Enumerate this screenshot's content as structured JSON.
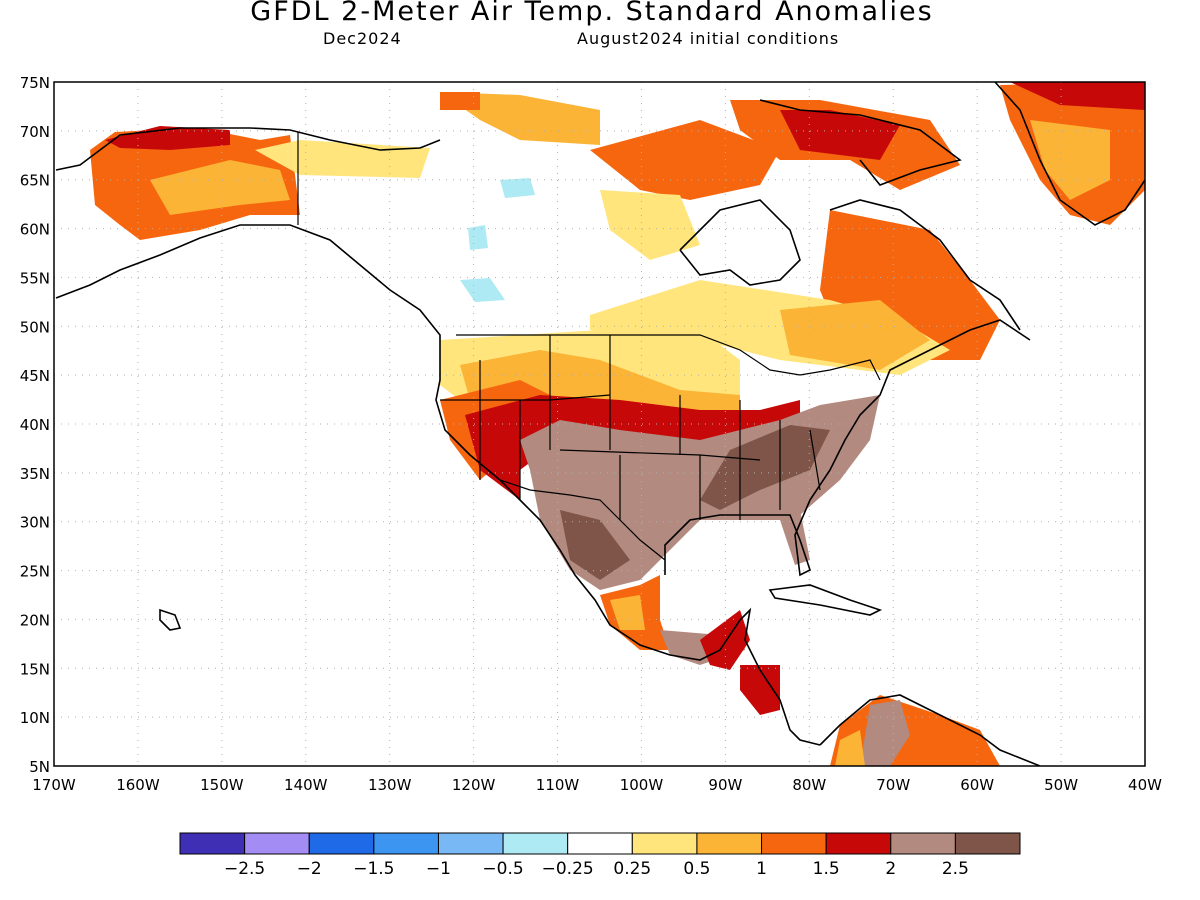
{
  "header": {
    "title": "GFDL 2-Meter Air Temp. Standard Anomalies",
    "valid_month": "Dec2024",
    "init": "August2024 initial conditions"
  },
  "map": {
    "lat_labels": [
      "75N",
      "70N",
      "65N",
      "60N",
      "55N",
      "50N",
      "45N",
      "40N",
      "35N",
      "30N",
      "25N",
      "20N",
      "15N",
      "10N",
      "5N"
    ],
    "lon_labels": [
      "170W",
      "160W",
      "150W",
      "140W",
      "130W",
      "120W",
      "110W",
      "100W",
      "90W",
      "80W",
      "70W",
      "60W",
      "50W",
      "40W"
    ],
    "lon_range": [
      -170,
      -40
    ],
    "lat_range": [
      5,
      75
    ],
    "grid": true
  },
  "legend": {
    "labels": [
      "-2.5",
      "-2",
      "-1.5",
      "-1",
      "-0.5",
      "-0.25",
      "0.25",
      "0.5",
      "1",
      "1.5",
      "2",
      "2.5"
    ],
    "colors": [
      "#3f2fb5",
      "#a48cf5",
      "#1f6ae6",
      "#3c95f0",
      "#78b8f4",
      "#aeeaf4",
      "#ffffff",
      "#ffe57c",
      "#fbb436",
      "#f6660f",
      "#c70808",
      "#b28a7f",
      "#7e5548"
    ]
  }
}
